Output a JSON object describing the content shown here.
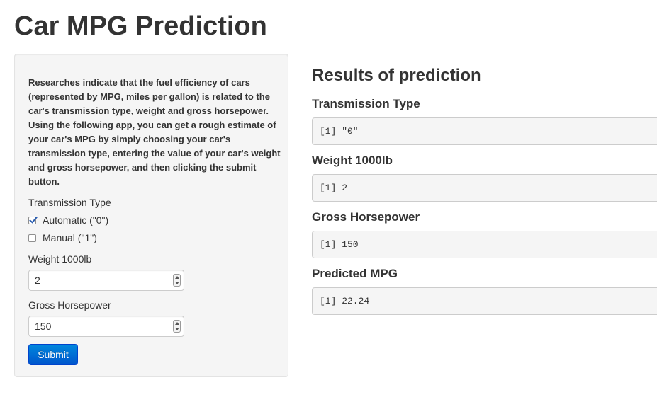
{
  "page_title": "Car MPG Prediction",
  "sidebar": {
    "intro": "Researches indicate that the fuel efficiency of cars (represented by MPG, miles per gallon) is related to the car's transmission type, weight and gross horsepower. Using the following app, you can get a rough estimate of your car's MPG by simply choosing your car's transmission type, entering the value of your car's weight and gross horsepower, and then clicking the submit button.",
    "transmission": {
      "label": "Transmission Type",
      "options": [
        {
          "label": "Automatic (\"0\")",
          "checked": true
        },
        {
          "label": "Manual (\"1\")",
          "checked": false
        }
      ]
    },
    "weight": {
      "label": "Weight 1000lb",
      "value": "2"
    },
    "horsepower": {
      "label": "Gross Horsepower",
      "value": "150"
    },
    "submit_label": "Submit"
  },
  "results": {
    "title": "Results of prediction",
    "items": [
      {
        "label": "Transmission Type",
        "output": "[1] \"0\""
      },
      {
        "label": "Weight 1000lb",
        "output": "[1] 2"
      },
      {
        "label": "Gross Horsepower",
        "output": "[1] 150"
      },
      {
        "label": "Predicted MPG",
        "output": "[1] 22.24"
      }
    ]
  },
  "colors": {
    "accent": "#0066cc",
    "panel_background": "#f5f5f5",
    "text": "#333333"
  }
}
